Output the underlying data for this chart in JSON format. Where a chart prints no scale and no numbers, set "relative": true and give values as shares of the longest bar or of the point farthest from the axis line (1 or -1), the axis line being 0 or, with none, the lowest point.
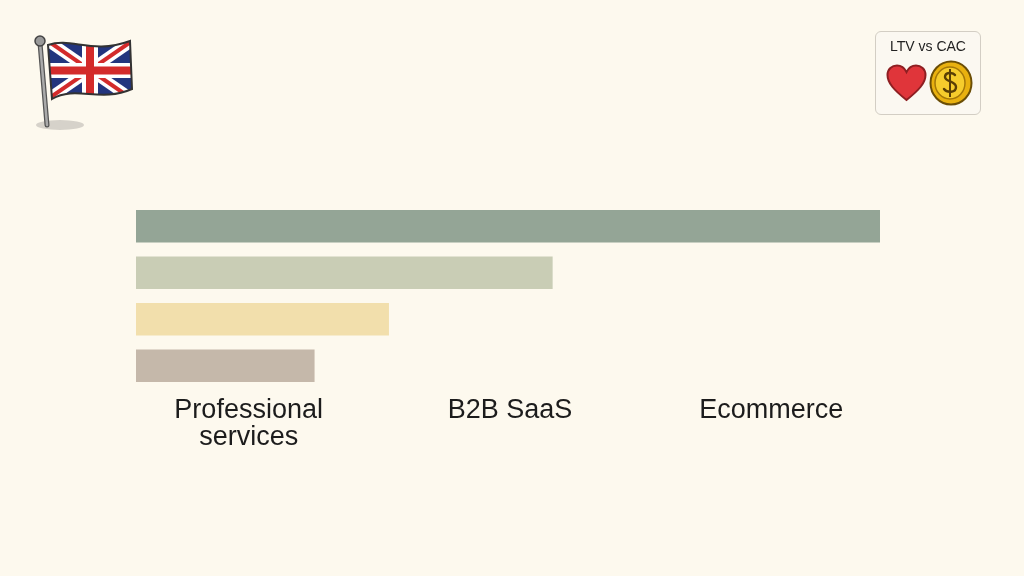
{
  "chart_data": {
    "type": "bar",
    "orientation": "horizontal",
    "relative": true,
    "title": "LTV vs CAC",
    "categories": [
      null,
      null,
      null,
      null
    ],
    "values": [
      1,
      0.56,
      0.34,
      0.24
    ],
    "colors": [
      "#94a596",
      "#c9cdb5",
      "#f2dfac",
      "#c5b8aa"
    ],
    "annotations": [
      "Professional services",
      "B2B SaaS",
      "Ecommerce"
    ]
  }
}
